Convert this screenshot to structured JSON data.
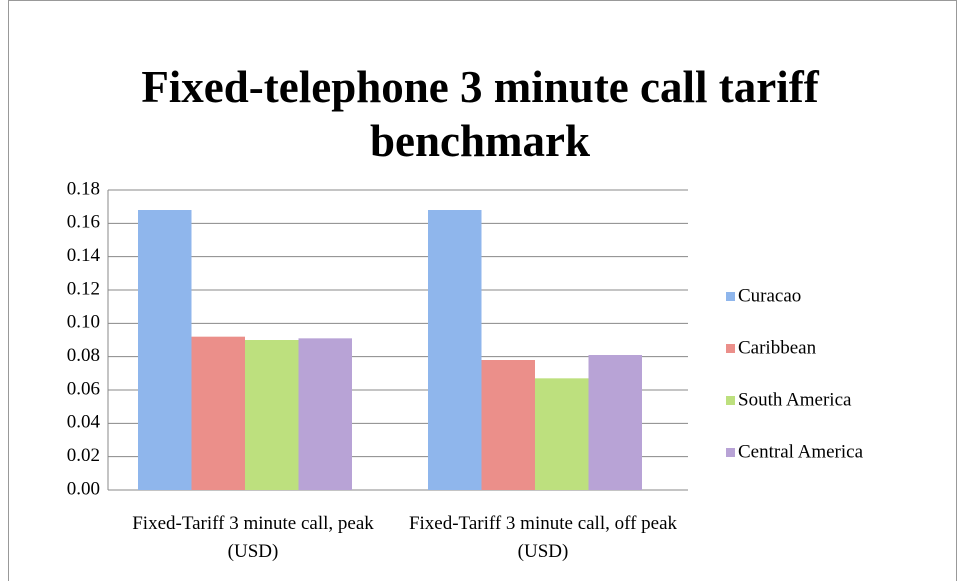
{
  "chart_data": {
    "type": "bar",
    "title": "Fixed-telephone 3 minute call tariff benchmark",
    "categories": [
      "Fixed-Tariff 3 minute call, peak (USD)",
      "Fixed-Tariff 3 minute call, off peak (USD)"
    ],
    "series": [
      {
        "name": "Curacao",
        "color": "#8fb6ec",
        "values": [
          0.168,
          0.168
        ]
      },
      {
        "name": "Caribbean",
        "color": "#eb8f8a",
        "values": [
          0.092,
          0.078
        ]
      },
      {
        "name": "South America",
        "color": "#bde07e",
        "values": [
          0.09,
          0.067
        ]
      },
      {
        "name": "Central America",
        "color": "#b8a3d6",
        "values": [
          0.091,
          0.081
        ]
      }
    ],
    "ylim": [
      0,
      0.18
    ],
    "yticks": [
      {
        "value": 0,
        "label": "0.00"
      },
      0.02,
      0.04,
      0.06,
      0.08,
      {
        "value": 0.1,
        "label": "0.10"
      },
      0.12,
      0.14,
      0.16,
      0.18
    ],
    "grid": true,
    "legend": "right"
  }
}
